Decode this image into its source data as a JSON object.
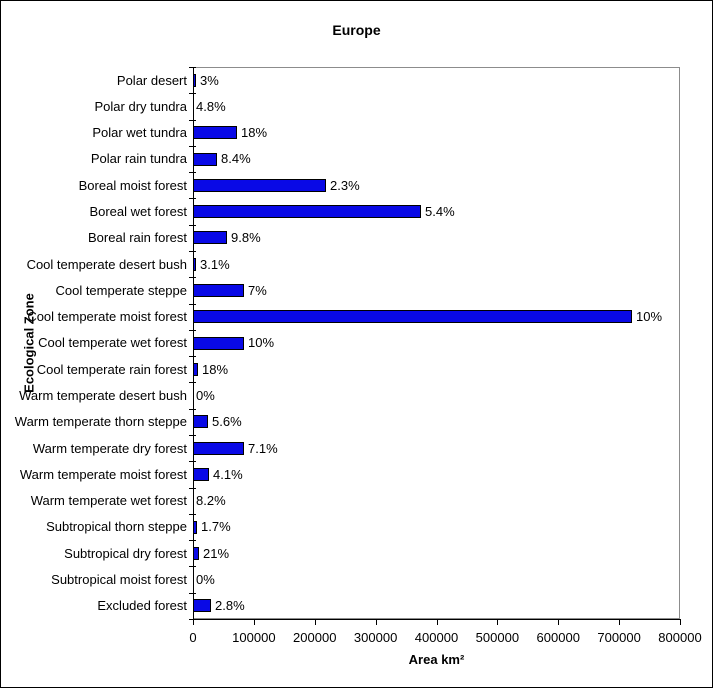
{
  "chart_data": {
    "type": "bar",
    "orientation": "horizontal",
    "title": "Europe",
    "xlabel": "Area km²",
    "ylabel": "Ecological Zone",
    "xlim": [
      0,
      800000
    ],
    "x_ticks": [
      0,
      100000,
      200000,
      300000,
      400000,
      500000,
      600000,
      700000,
      800000
    ],
    "grid": false,
    "legend": "none",
    "bar_color": "#0909e6",
    "bar_border_color": "#000000",
    "plot_border_color": "#8c8c8c",
    "categories": [
      "Polar desert",
      "Polar dry tundra",
      "Polar wet tundra",
      "Polar rain tundra",
      "Boreal moist forest",
      "Boreal wet forest",
      "Boreal rain forest",
      "Cool temperate desert bush",
      "Cool temperate steppe",
      "Cool temperate moist forest",
      "Cool temperate wet forest",
      "Cool temperate rain forest",
      "Warm temperate desert bush",
      "Warm temperate thorn steppe",
      "Warm temperate dry forest",
      "Warm temperate moist forest",
      "Warm temperate wet forest",
      "Subtropical thorn steppe",
      "Subtropical dry forest",
      "Subtropical moist forest",
      "Excluded forest"
    ],
    "values": [
      5000,
      0,
      73000,
      39000,
      219000,
      374000,
      56000,
      5000,
      84000,
      721000,
      84000,
      8000,
      0,
      25000,
      84000,
      26000,
      0,
      7000,
      10000,
      0,
      30000
    ],
    "data_labels": [
      "3%",
      "4.8%",
      "18%",
      "8.4%",
      "2.3%",
      "5.4%",
      "9.8%",
      "3.1%",
      "7%",
      "10%",
      "10%",
      "18%",
      "0%",
      "5.6%",
      "7.1%",
      "4.1%",
      "8.2%",
      "1.7%",
      "21%",
      "0%",
      "2.8%"
    ]
  }
}
